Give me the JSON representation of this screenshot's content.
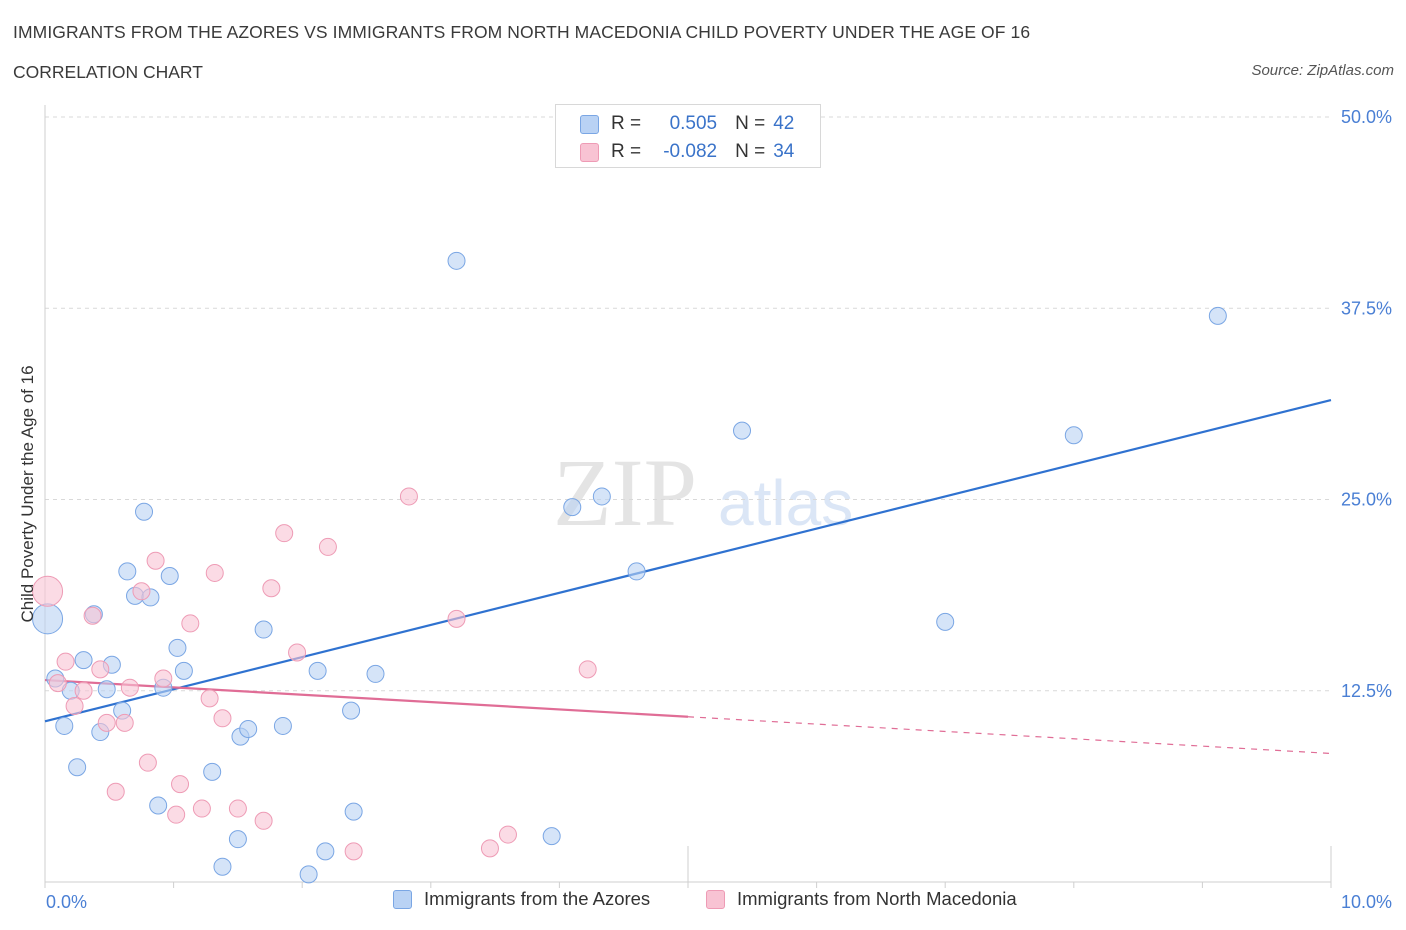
{
  "title": "IMMIGRANTS FROM THE AZORES VS IMMIGRANTS FROM NORTH MACEDONIA CHILD POVERTY UNDER THE AGE OF 16",
  "subtitle": "CORRELATION CHART",
  "source": "Source: ZipAtlas.com",
  "watermark": {
    "zip": "ZIP",
    "atlas": "atlas"
  },
  "colors": {
    "blue_fill": "#b9d2f4",
    "blue_stroke": "#7aa6e4",
    "blue_line": "#2f72d0",
    "pink_fill": "#f8c3d3",
    "pink_stroke": "#ee9bb5",
    "pink_line": "#e06d96",
    "axis_text": "#4a7fd4",
    "grid": "#d9d9d9"
  },
  "legend": {
    "rows": [
      {
        "r_label": "R =",
        "r_value": "0.505",
        "n_label": "N =",
        "n_value": "42",
        "color": "blue"
      },
      {
        "r_label": "R =",
        "r_value": "-0.082",
        "n_label": "N =",
        "n_value": "34",
        "color": "pink"
      }
    ]
  },
  "bottom_legend": {
    "series1": "Immigrants from the Azores",
    "series2": "Immigrants from North Macedonia"
  },
  "chart_data": {
    "type": "scatter",
    "title": "IMMIGRANTS FROM THE AZORES VS IMMIGRANTS FROM NORTH MACEDONIA CHILD POVERTY UNDER THE AGE OF 16",
    "xlabel": "",
    "ylabel": "Child Poverty Under the Age of 16",
    "xlim": [
      0,
      10
    ],
    "ylim": [
      0,
      50
    ],
    "x_tick_labels": [
      "0.0%",
      "10.0%"
    ],
    "y_ticks": [
      12.5,
      25.0,
      37.5,
      50.0
    ],
    "y_tick_labels": [
      "12.5%",
      "25.0%",
      "37.5%",
      "50.0%"
    ],
    "grid": true,
    "series": [
      {
        "name": "Immigrants from the Azores",
        "color": "blue",
        "r": 0.505,
        "n": 42,
        "trend": {
          "x": [
            0,
            10
          ],
          "y": [
            10.5,
            31.5
          ]
        },
        "points": [
          {
            "x": 0.02,
            "y": 17.2,
            "big": true
          },
          {
            "x": 0.08,
            "y": 13.3
          },
          {
            "x": 0.15,
            "y": 10.2
          },
          {
            "x": 0.2,
            "y": 12.5
          },
          {
            "x": 0.25,
            "y": 7.5
          },
          {
            "x": 0.3,
            "y": 14.5
          },
          {
            "x": 0.38,
            "y": 17.5
          },
          {
            "x": 0.43,
            "y": 9.8
          },
          {
            "x": 0.48,
            "y": 12.6
          },
          {
            "x": 0.52,
            "y": 14.2
          },
          {
            "x": 0.6,
            "y": 11.2
          },
          {
            "x": 0.64,
            "y": 20.3
          },
          {
            "x": 0.7,
            "y": 18.7
          },
          {
            "x": 0.77,
            "y": 24.2
          },
          {
            "x": 0.82,
            "y": 18.6
          },
          {
            "x": 0.88,
            "y": 5.0
          },
          {
            "x": 0.92,
            "y": 12.7
          },
          {
            "x": 0.97,
            "y": 20.0
          },
          {
            "x": 1.03,
            "y": 15.3
          },
          {
            "x": 1.08,
            "y": 13.8
          },
          {
            "x": 1.3,
            "y": 7.2
          },
          {
            "x": 1.38,
            "y": 1.0
          },
          {
            "x": 1.5,
            "y": 2.8
          },
          {
            "x": 1.52,
            "y": 9.5
          },
          {
            "x": 1.58,
            "y": 10.0
          },
          {
            "x": 1.7,
            "y": 16.5
          },
          {
            "x": 1.85,
            "y": 10.2
          },
          {
            "x": 2.05,
            "y": 0.5
          },
          {
            "x": 2.12,
            "y": 13.8
          },
          {
            "x": 2.18,
            "y": 2.0
          },
          {
            "x": 2.4,
            "y": 4.6
          },
          {
            "x": 2.38,
            "y": 11.2
          },
          {
            "x": 2.57,
            "y": 13.6
          },
          {
            "x": 3.2,
            "y": 40.6
          },
          {
            "x": 3.94,
            "y": 3.0
          },
          {
            "x": 4.1,
            "y": 24.5
          },
          {
            "x": 4.33,
            "y": 25.2
          },
          {
            "x": 4.6,
            "y": 20.3
          },
          {
            "x": 5.42,
            "y": 29.5
          },
          {
            "x": 7.0,
            "y": 17.0
          },
          {
            "x": 8.0,
            "y": 29.2
          },
          {
            "x": 9.12,
            "y": 37.0
          }
        ]
      },
      {
        "name": "Immigrants from North Macedonia",
        "color": "pink",
        "r": -0.082,
        "n": 34,
        "trend": {
          "x": [
            0,
            5.0
          ],
          "y": [
            13.2,
            10.8
          ]
        },
        "trend_dashed": {
          "x": [
            5.0,
            10
          ],
          "y": [
            10.8,
            8.4
          ]
        },
        "points": [
          {
            "x": 0.02,
            "y": 19.0,
            "big": true
          },
          {
            "x": 0.1,
            "y": 13.0
          },
          {
            "x": 0.16,
            "y": 14.4
          },
          {
            "x": 0.23,
            "y": 11.5
          },
          {
            "x": 0.3,
            "y": 12.5
          },
          {
            "x": 0.37,
            "y": 17.4
          },
          {
            "x": 0.43,
            "y": 13.9
          },
          {
            "x": 0.55,
            "y": 5.9
          },
          {
            "x": 0.48,
            "y": 10.4
          },
          {
            "x": 0.62,
            "y": 10.4
          },
          {
            "x": 0.66,
            "y": 12.7
          },
          {
            "x": 0.75,
            "y": 19.0
          },
          {
            "x": 0.8,
            "y": 7.8
          },
          {
            "x": 0.86,
            "y": 21.0
          },
          {
            "x": 0.92,
            "y": 13.3
          },
          {
            "x": 1.02,
            "y": 4.4
          },
          {
            "x": 1.05,
            "y": 6.4
          },
          {
            "x": 1.13,
            "y": 16.9
          },
          {
            "x": 1.22,
            "y": 4.8
          },
          {
            "x": 1.28,
            "y": 12.0
          },
          {
            "x": 1.32,
            "y": 20.2
          },
          {
            "x": 1.38,
            "y": 10.7
          },
          {
            "x": 1.5,
            "y": 4.8
          },
          {
            "x": 1.7,
            "y": 4.0
          },
          {
            "x": 1.76,
            "y": 19.2
          },
          {
            "x": 1.86,
            "y": 22.8
          },
          {
            "x": 1.96,
            "y": 15.0
          },
          {
            "x": 2.2,
            "y": 21.9
          },
          {
            "x": 2.4,
            "y": 2.0
          },
          {
            "x": 2.83,
            "y": 25.2
          },
          {
            "x": 3.2,
            "y": 17.2
          },
          {
            "x": 3.46,
            "y": 2.2
          },
          {
            "x": 3.6,
            "y": 3.1
          },
          {
            "x": 4.22,
            "y": 13.9
          }
        ]
      }
    ]
  }
}
